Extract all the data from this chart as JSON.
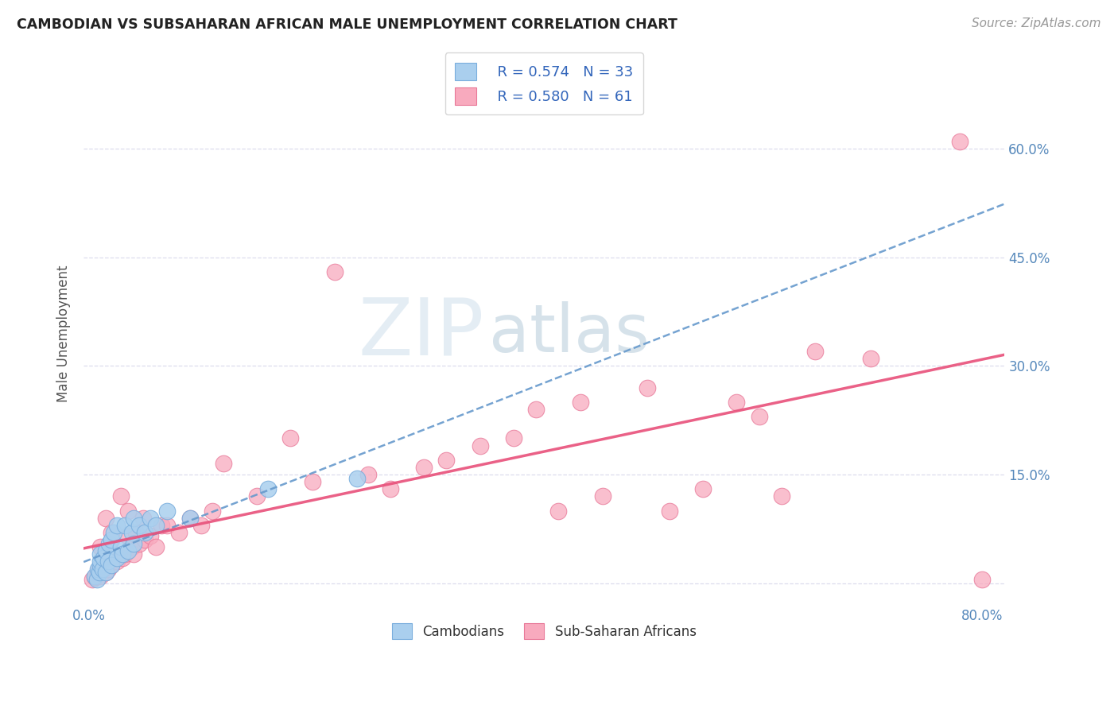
{
  "title": "CAMBODIAN VS SUBSAHARAN AFRICAN MALE UNEMPLOYMENT CORRELATION CHART",
  "source": "Source: ZipAtlas.com",
  "ylabel": "Male Unemployment",
  "xlim": [
    -0.005,
    0.82
  ],
  "ylim": [
    -0.03,
    0.72
  ],
  "yticks": [
    0.0,
    0.15,
    0.3,
    0.45,
    0.6
  ],
  "yticklabels": [
    "",
    "15.0%",
    "30.0%",
    "45.0%",
    "60.0%"
  ],
  "xticks": [
    0.0,
    0.1,
    0.2,
    0.3,
    0.4,
    0.5,
    0.6,
    0.7,
    0.8
  ],
  "xticklabels": [
    "0.0%",
    "",
    "",
    "",
    "",
    "",
    "",
    "",
    "80.0%"
  ],
  "legend_R1": "R = 0.574",
  "legend_N1": "N = 33",
  "legend_R2": "R = 0.580",
  "legend_N2": "N = 61",
  "cambodian_fill": "#aacfee",
  "cambodian_edge": "#7aaedd",
  "subsaharan_fill": "#f8aabe",
  "subsaharan_edge": "#e87898",
  "cambodian_line_color": "#6699cc",
  "subsaharan_line_color": "#e8507a",
  "title_color": "#222222",
  "axis_tick_color": "#5588bb",
  "grid_color": "#ddddee",
  "cambodians_x": [
    0.005,
    0.007,
    0.008,
    0.009,
    0.01,
    0.01,
    0.01,
    0.012,
    0.013,
    0.015,
    0.015,
    0.017,
    0.018,
    0.02,
    0.02,
    0.022,
    0.025,
    0.025,
    0.028,
    0.03,
    0.032,
    0.035,
    0.038,
    0.04,
    0.04,
    0.045,
    0.05,
    0.055,
    0.06,
    0.07,
    0.09,
    0.16,
    0.24
  ],
  "cambodians_y": [
    0.01,
    0.005,
    0.02,
    0.015,
    0.025,
    0.03,
    0.04,
    0.02,
    0.035,
    0.015,
    0.045,
    0.03,
    0.055,
    0.025,
    0.06,
    0.07,
    0.035,
    0.08,
    0.05,
    0.04,
    0.08,
    0.045,
    0.07,
    0.055,
    0.09,
    0.08,
    0.07,
    0.09,
    0.08,
    0.1,
    0.09,
    0.13,
    0.145
  ],
  "subsaharan_x": [
    0.003,
    0.005,
    0.007,
    0.008,
    0.009,
    0.01,
    0.01,
    0.012,
    0.013,
    0.015,
    0.015,
    0.017,
    0.018,
    0.02,
    0.02,
    0.022,
    0.025,
    0.028,
    0.03,
    0.032,
    0.034,
    0.035,
    0.038,
    0.04,
    0.042,
    0.045,
    0.048,
    0.05,
    0.055,
    0.06,
    0.065,
    0.07,
    0.08,
    0.09,
    0.1,
    0.11,
    0.12,
    0.15,
    0.18,
    0.2,
    0.22,
    0.25,
    0.27,
    0.3,
    0.32,
    0.35,
    0.38,
    0.4,
    0.42,
    0.44,
    0.46,
    0.5,
    0.52,
    0.55,
    0.58,
    0.6,
    0.62,
    0.65,
    0.7,
    0.78,
    0.8
  ],
  "subsaharan_y": [
    0.005,
    0.008,
    0.01,
    0.015,
    0.02,
    0.01,
    0.05,
    0.02,
    0.025,
    0.015,
    0.09,
    0.02,
    0.03,
    0.025,
    0.07,
    0.04,
    0.03,
    0.12,
    0.035,
    0.04,
    0.065,
    0.1,
    0.05,
    0.04,
    0.07,
    0.055,
    0.09,
    0.06,
    0.065,
    0.05,
    0.08,
    0.08,
    0.07,
    0.09,
    0.08,
    0.1,
    0.165,
    0.12,
    0.2,
    0.14,
    0.43,
    0.15,
    0.13,
    0.16,
    0.17,
    0.19,
    0.2,
    0.24,
    0.1,
    0.25,
    0.12,
    0.27,
    0.1,
    0.13,
    0.25,
    0.23,
    0.12,
    0.32,
    0.31,
    0.61,
    0.005
  ]
}
